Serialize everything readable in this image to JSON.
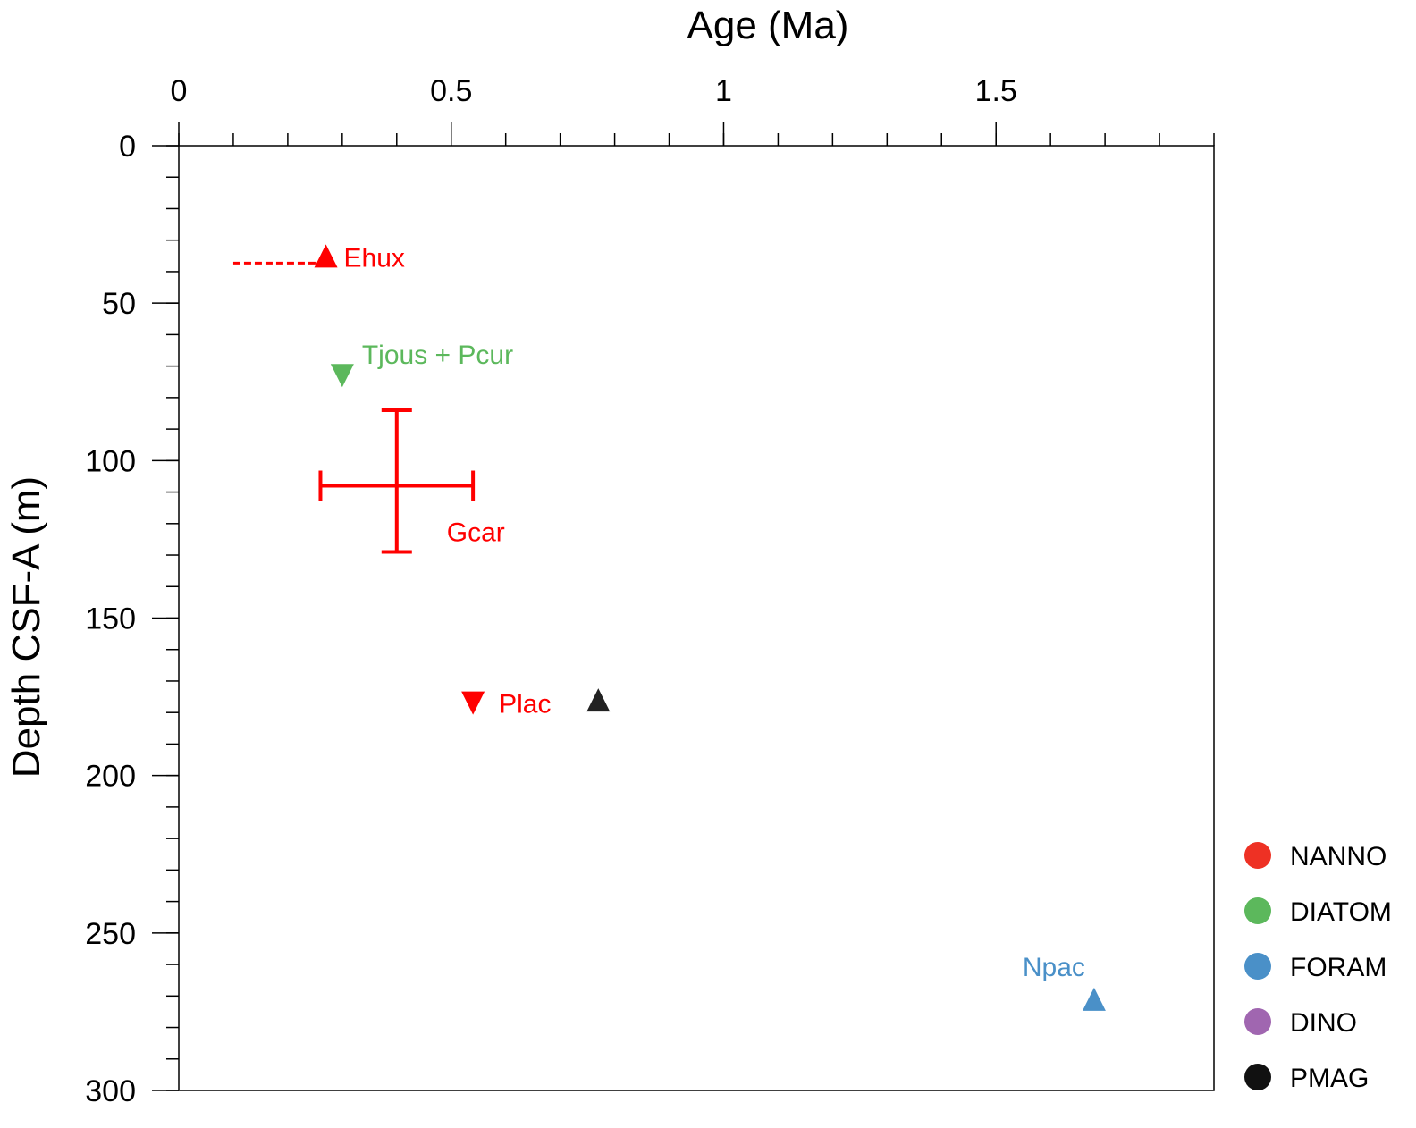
{
  "chart_data": {
    "type": "scatter",
    "xlabel": "Age (Ma)",
    "ylabel": "Depth CSF-A (m)",
    "xlim": [
      0,
      1.9
    ],
    "ylim": [
      0,
      300
    ],
    "x_axis_position": "top",
    "y_inverted": true,
    "x_major_ticks": [
      0,
      0.5,
      1,
      1.5
    ],
    "x_tick_labels": [
      "0",
      "0.5",
      "1",
      "1.5"
    ],
    "x_minor_step": 0.1,
    "y_major_ticks": [
      0,
      50,
      100,
      150,
      200,
      250,
      300
    ],
    "y_tick_labels": [
      "0",
      "50",
      "100",
      "150",
      "200",
      "250",
      "300"
    ],
    "y_minor_step": 10,
    "grid": false,
    "legend_position": "right",
    "legend": [
      {
        "name": "NANNO",
        "color": "#ee3124"
      },
      {
        "name": "DIATOM",
        "color": "#5cb85c"
      },
      {
        "name": "FORAM",
        "color": "#4a90c8"
      },
      {
        "name": "DINO",
        "color": "#a066b0"
      },
      {
        "name": "PMAG",
        "color": "#111111"
      }
    ],
    "points": [
      {
        "label": "Ehux",
        "group": "NANNO",
        "marker": "triangle-up",
        "x": 0.27,
        "y": 35,
        "color": "#ff0000",
        "label_anchor": "right",
        "range_x": [
          0.1,
          0.27
        ],
        "range_style": "dashed"
      },
      {
        "label": "Tjous + Pcur",
        "group": "DIATOM",
        "marker": "triangle-down",
        "x": 0.3,
        "y": 73,
        "color": "#5cb85c",
        "label_anchor": "right-up"
      },
      {
        "label": "Gcar",
        "group": "NANNO",
        "marker": "none",
        "x": 0.4,
        "y": 108,
        "color": "#ff0000",
        "label_anchor": "below-right",
        "xerr": [
          0.26,
          0.54
        ],
        "yerr": [
          84,
          129
        ]
      },
      {
        "label": "Plac",
        "group": "NANNO",
        "marker": "triangle-down",
        "x": 0.54,
        "y": 177,
        "color": "#ff0000",
        "label_anchor": "right"
      },
      {
        "label": "",
        "group": "PMAG",
        "marker": "triangle-up",
        "x": 0.77,
        "y": 176,
        "color": "#222222",
        "label_anchor": "none"
      },
      {
        "label": "Npac",
        "group": "FORAM",
        "marker": "triangle-up",
        "x": 1.68,
        "y": 271,
        "color": "#4a90c8",
        "label_anchor": "above-left"
      }
    ]
  }
}
